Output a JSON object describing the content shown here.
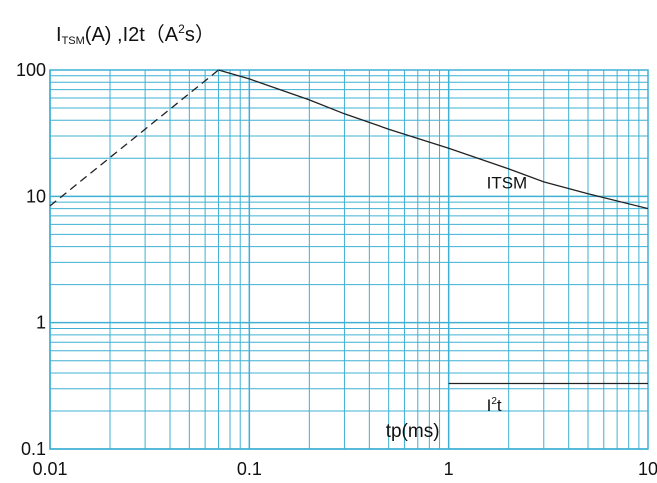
{
  "chart_data": {
    "type": "line",
    "title": "",
    "ylabel_parts": {
      "base": "I",
      "sub": "TSM",
      "mid": "(A) ,I2t（A",
      "sup": "2",
      "end": "s）"
    },
    "xlabel": "tp(ms)",
    "x_scale": "log",
    "y_scale": "log",
    "xlim": [
      0.01,
      10
    ],
    "ylim": [
      0.1,
      100
    ],
    "x_ticks": [
      "0.01",
      "0.1",
      "1",
      "10"
    ],
    "y_ticks": [
      "100",
      "10",
      "1",
      "0.1"
    ],
    "grid": true,
    "grid_color": "#3fb0d3",
    "series": [
      {
        "name": "ITSM",
        "style": "dashed",
        "color": "#222222",
        "points": [
          [
            0.01,
            8.4
          ],
          [
            0.07,
            100
          ]
        ]
      },
      {
        "name": "ITSM",
        "style": "solid",
        "color": "#222222",
        "points": [
          [
            0.07,
            100
          ],
          [
            0.1,
            85
          ],
          [
            0.2,
            58
          ],
          [
            0.3,
            45
          ],
          [
            0.5,
            34
          ],
          [
            1,
            24
          ],
          [
            2,
            16.5
          ],
          [
            3,
            13
          ],
          [
            5,
            10.5
          ],
          [
            10,
            8
          ]
        ]
      },
      {
        "name": "I²t",
        "style": "solid",
        "color": "#222222",
        "points": [
          [
            1,
            0.33
          ],
          [
            10,
            0.33
          ]
        ]
      }
    ],
    "annotations": {
      "itsm": "ITSM",
      "i2t_base": "I",
      "i2t_sup": "2",
      "i2t_end": "t"
    }
  }
}
